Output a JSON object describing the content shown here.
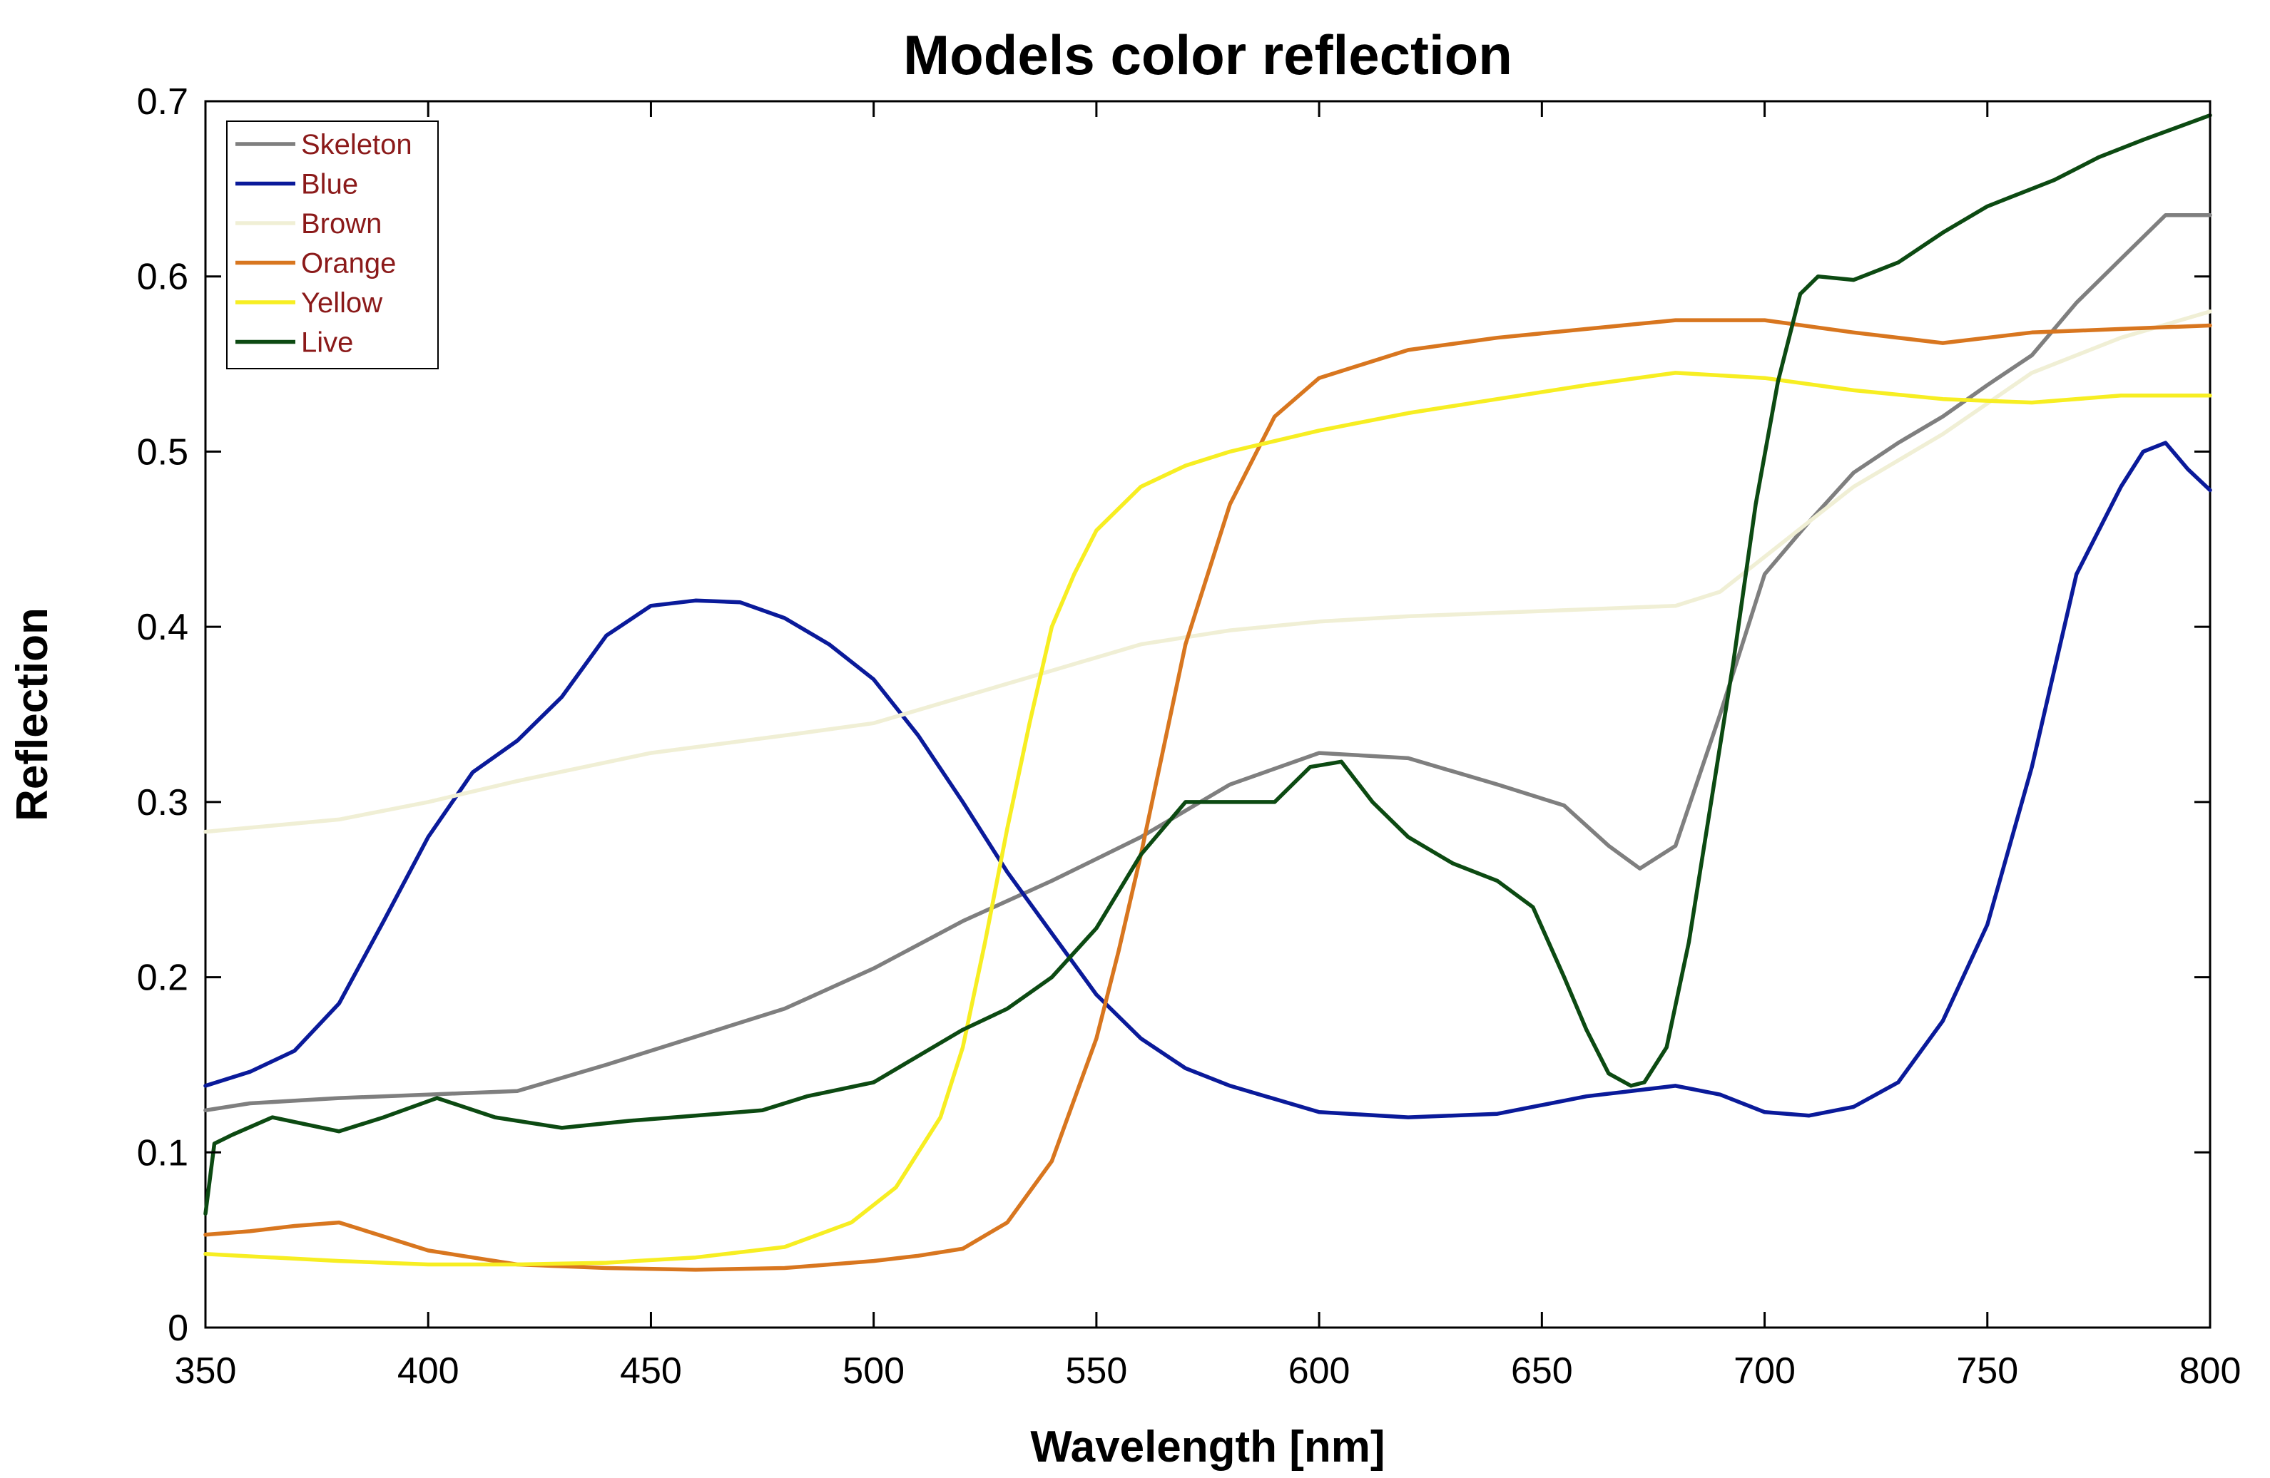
{
  "chart_data": {
    "type": "line",
    "title": "Models color reflection",
    "xlabel": "Wavelength [nm]",
    "ylabel": "Reflection",
    "xlim": [
      350,
      800
    ],
    "ylim": [
      0,
      0.7
    ],
    "xticks": [
      350,
      400,
      450,
      500,
      550,
      600,
      650,
      700,
      750,
      800
    ],
    "yticks": [
      0,
      0.1,
      0.2,
      0.3,
      0.4,
      0.5,
      0.6,
      0.7
    ],
    "xtick_labels": [
      "350",
      "400",
      "450",
      "500",
      "550",
      "600",
      "650",
      "700",
      "750",
      "800"
    ],
    "ytick_labels": [
      "0",
      "0.1",
      "0.2",
      "0.3",
      "0.4",
      "0.5",
      "0.6",
      "0.7"
    ],
    "grid": false,
    "legend_position": "top-left",
    "series": [
      {
        "name": "Skeleton",
        "color": "#7f7f7f",
        "x": [
          350,
          360,
          380,
          400,
          420,
          440,
          460,
          480,
          500,
          520,
          540,
          560,
          580,
          600,
          620,
          640,
          655,
          665,
          672,
          680,
          690,
          700,
          710,
          720,
          730,
          740,
          750,
          760,
          770,
          780,
          790,
          800
        ],
        "y": [
          0.124,
          0.128,
          0.131,
          0.133,
          0.135,
          0.15,
          0.166,
          0.182,
          0.205,
          0.232,
          0.255,
          0.28,
          0.31,
          0.328,
          0.325,
          0.31,
          0.298,
          0.275,
          0.262,
          0.275,
          0.35,
          0.43,
          0.46,
          0.488,
          0.505,
          0.52,
          0.538,
          0.555,
          0.585,
          0.61,
          0.635,
          0.635
        ]
      },
      {
        "name": "Blue",
        "color": "#0a1a9a",
        "x": [
          350,
          360,
          370,
          380,
          390,
          400,
          410,
          420,
          430,
          440,
          450,
          460,
          470,
          480,
          490,
          500,
          510,
          520,
          530,
          540,
          550,
          560,
          570,
          580,
          600,
          620,
          640,
          660,
          680,
          690,
          700,
          710,
          720,
          730,
          740,
          750,
          760,
          770,
          780,
          785,
          790,
          795,
          800
        ],
        "y": [
          0.138,
          0.146,
          0.158,
          0.185,
          0.232,
          0.28,
          0.317,
          0.335,
          0.36,
          0.395,
          0.412,
          0.415,
          0.414,
          0.405,
          0.39,
          0.37,
          0.338,
          0.3,
          0.26,
          0.225,
          0.19,
          0.165,
          0.148,
          0.138,
          0.123,
          0.12,
          0.122,
          0.132,
          0.138,
          0.133,
          0.123,
          0.121,
          0.126,
          0.14,
          0.175,
          0.23,
          0.32,
          0.43,
          0.48,
          0.5,
          0.505,
          0.49,
          0.478
        ]
      },
      {
        "name": "Brown",
        "color": "#f0efd5",
        "x": [
          350,
          380,
          400,
          420,
          450,
          480,
          500,
          520,
          540,
          560,
          580,
          600,
          620,
          640,
          660,
          680,
          690,
          700,
          710,
          720,
          740,
          760,
          780,
          800
        ],
        "y": [
          0.283,
          0.29,
          0.3,
          0.312,
          0.328,
          0.338,
          0.345,
          0.36,
          0.375,
          0.39,
          0.398,
          0.403,
          0.406,
          0.408,
          0.41,
          0.412,
          0.42,
          0.44,
          0.46,
          0.48,
          0.51,
          0.545,
          0.565,
          0.58
        ]
      },
      {
        "name": "Orange",
        "color": "#d8761f",
        "x": [
          350,
          360,
          370,
          380,
          390,
          400,
          420,
          440,
          460,
          480,
          500,
          510,
          520,
          530,
          540,
          550,
          555,
          560,
          565,
          570,
          580,
          590,
          600,
          620,
          640,
          660,
          680,
          700,
          720,
          740,
          760,
          780,
          800
        ],
        "y": [
          0.053,
          0.055,
          0.058,
          0.06,
          0.052,
          0.044,
          0.036,
          0.034,
          0.033,
          0.034,
          0.038,
          0.041,
          0.045,
          0.06,
          0.095,
          0.165,
          0.215,
          0.27,
          0.33,
          0.39,
          0.47,
          0.52,
          0.542,
          0.558,
          0.565,
          0.57,
          0.575,
          0.575,
          0.568,
          0.562,
          0.568,
          0.57,
          0.572
        ]
      },
      {
        "name": "Yellow",
        "color": "#f7ee22",
        "x": [
          350,
          380,
          400,
          420,
          440,
          460,
          480,
          495,
          505,
          515,
          520,
          525,
          530,
          535,
          540,
          545,
          550,
          560,
          570,
          580,
          600,
          620,
          640,
          660,
          680,
          700,
          720,
          740,
          760,
          780,
          800
        ],
        "y": [
          0.042,
          0.038,
          0.036,
          0.036,
          0.037,
          0.04,
          0.046,
          0.06,
          0.08,
          0.12,
          0.16,
          0.22,
          0.285,
          0.345,
          0.4,
          0.43,
          0.455,
          0.48,
          0.492,
          0.5,
          0.512,
          0.522,
          0.53,
          0.538,
          0.545,
          0.542,
          0.535,
          0.53,
          0.528,
          0.532,
          0.532
        ]
      },
      {
        "name": "Live",
        "color": "#0c4a12",
        "x": [
          350,
          352,
          356,
          365,
          380,
          390,
          402,
          415,
          430,
          445,
          460,
          475,
          485,
          500,
          510,
          520,
          530,
          540,
          550,
          560,
          570,
          580,
          590,
          598,
          605,
          612,
          620,
          630,
          640,
          648,
          655,
          660,
          665,
          670,
          673,
          678,
          683,
          688,
          693,
          698,
          703,
          708,
          712,
          720,
          730,
          740,
          750,
          755,
          765,
          775,
          785,
          800
        ],
        "y": [
          0.065,
          0.105,
          0.11,
          0.12,
          0.112,
          0.12,
          0.131,
          0.12,
          0.114,
          0.118,
          0.121,
          0.124,
          0.132,
          0.14,
          0.155,
          0.17,
          0.182,
          0.2,
          0.228,
          0.27,
          0.3,
          0.3,
          0.3,
          0.32,
          0.323,
          0.3,
          0.28,
          0.265,
          0.255,
          0.24,
          0.2,
          0.17,
          0.145,
          0.138,
          0.14,
          0.16,
          0.22,
          0.3,
          0.38,
          0.47,
          0.54,
          0.59,
          0.6,
          0.598,
          0.608,
          0.625,
          0.64,
          0.645,
          0.655,
          0.668,
          0.678,
          0.692
        ]
      }
    ]
  }
}
